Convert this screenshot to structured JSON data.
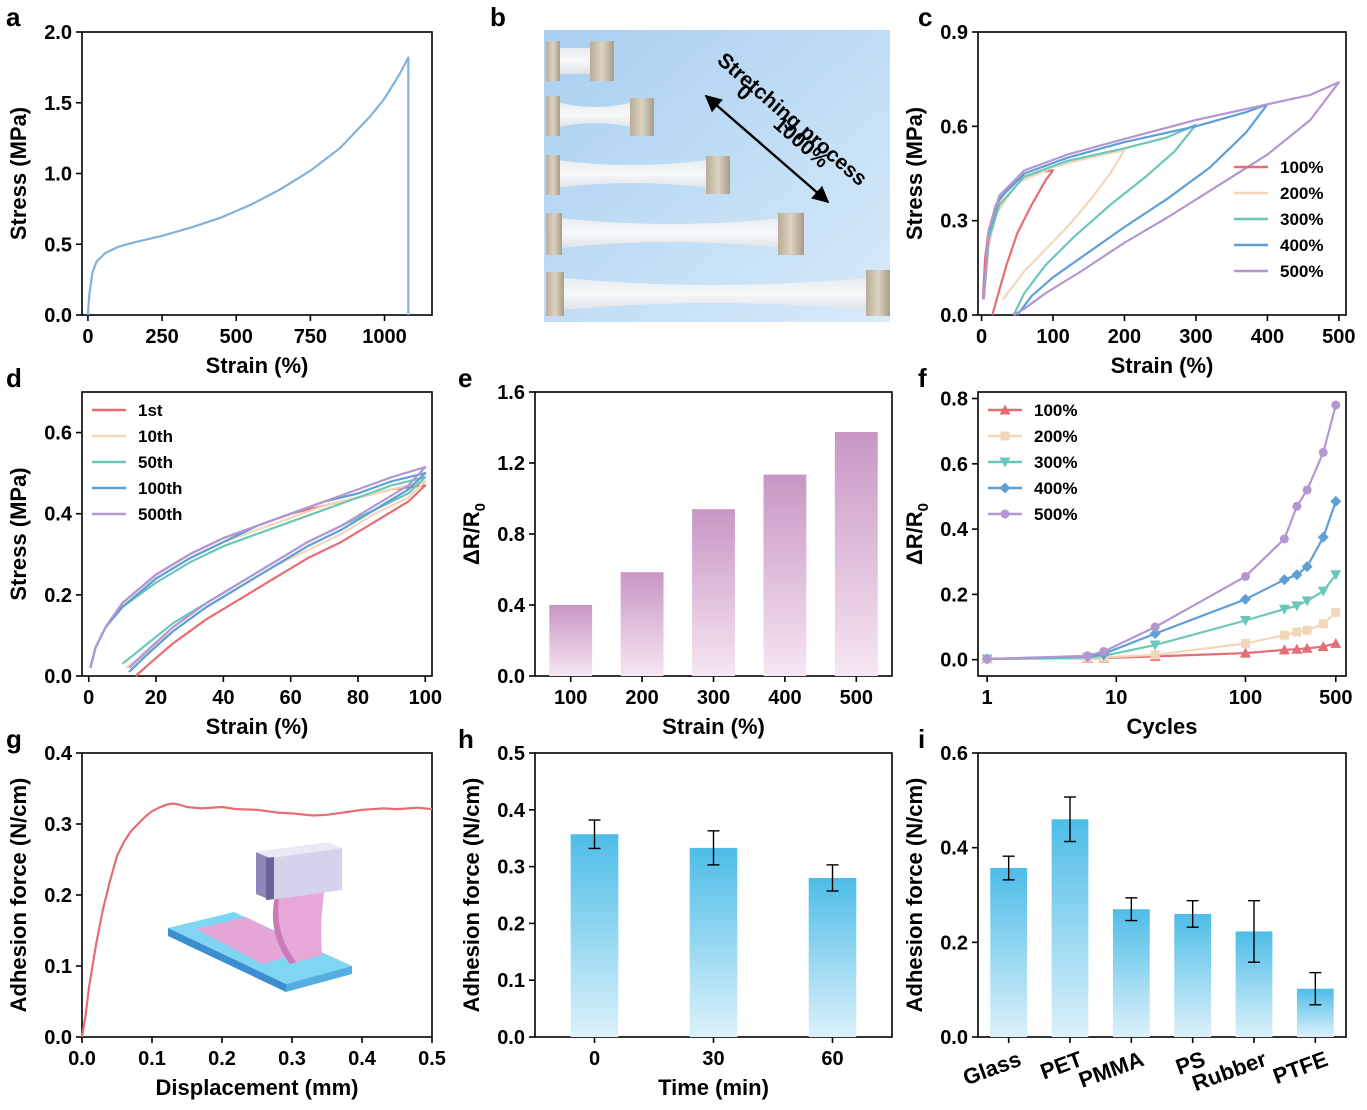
{
  "panels": [
    {
      "id": "a",
      "type": "line",
      "xlabel": "Strain (%)",
      "ylabel": "Stress (MPa)",
      "xlim": [
        -20,
        1160
      ],
      "ylim": [
        0,
        2.0
      ],
      "xticks": [
        0,
        250,
        500,
        750,
        1000
      ],
      "yticks": [
        0.0,
        0.5,
        1.0,
        1.5,
        2.0
      ],
      "ytick_decimals": 1,
      "grid": false,
      "series": [
        {
          "color": "#7fb3dd",
          "x": [
            0,
            5,
            15,
            30,
            60,
            100,
            150,
            250,
            350,
            450,
            550,
            650,
            750,
            850,
            950,
            1000,
            1050,
            1080,
            1080
          ],
          "y": [
            0,
            0.15,
            0.3,
            0.38,
            0.44,
            0.48,
            0.51,
            0.56,
            0.62,
            0.69,
            0.78,
            0.89,
            1.02,
            1.18,
            1.4,
            1.53,
            1.7,
            1.82,
            0.0
          ]
        }
      ]
    },
    {
      "id": "b",
      "type": "photo",
      "annotation": "Stretching process",
      "range_start": "0",
      "range_end": "1000%"
    },
    {
      "id": "c",
      "type": "line",
      "xlabel": "Strain (%)",
      "ylabel": "Stress (MPa)",
      "xlim": [
        -5,
        510
      ],
      "ylim": [
        0,
        0.9
      ],
      "xticks": [
        0,
        100,
        200,
        300,
        400,
        500
      ],
      "yticks": [
        0.0,
        0.3,
        0.6,
        0.9
      ],
      "ytick_decimals": 1,
      "grid": false,
      "legend_position": "right",
      "series": [
        {
          "name": "100%",
          "color": "#e66d73",
          "x": [
            2,
            5,
            10,
            20,
            40,
            60,
            80,
            100,
            90,
            70,
            50,
            35,
            25,
            15
          ],
          "y": [
            0.05,
            0.18,
            0.27,
            0.35,
            0.41,
            0.44,
            0.455,
            0.46,
            0.43,
            0.35,
            0.26,
            0.16,
            0.08,
            0.0
          ]
        },
        {
          "name": "200%",
          "color": "#f2d7b8",
          "x": [
            3,
            10,
            20,
            50,
            100,
            150,
            200,
            180,
            150,
            120,
            90,
            60,
            40,
            30
          ],
          "y": [
            0.05,
            0.22,
            0.32,
            0.42,
            0.47,
            0.5,
            0.525,
            0.45,
            0.36,
            0.28,
            0.21,
            0.14,
            0.08,
            0.05
          ]
        },
        {
          "name": "300%",
          "color": "#6cc7b9",
          "x": [
            3,
            10,
            25,
            60,
            120,
            200,
            260,
            300,
            270,
            230,
            180,
            130,
            90,
            60,
            45
          ],
          "y": [
            0.05,
            0.24,
            0.35,
            0.44,
            0.49,
            0.53,
            0.565,
            0.605,
            0.52,
            0.44,
            0.35,
            0.25,
            0.16,
            0.07,
            0.0
          ]
        },
        {
          "name": "400%",
          "color": "#5f9ed6",
          "x": [
            3,
            10,
            25,
            60,
            120,
            200,
            300,
            370,
            400,
            370,
            320,
            260,
            200,
            150,
            100,
            70,
            50
          ],
          "y": [
            0.05,
            0.26,
            0.37,
            0.45,
            0.5,
            0.55,
            0.6,
            0.645,
            0.67,
            0.58,
            0.47,
            0.37,
            0.28,
            0.2,
            0.12,
            0.06,
            0.0
          ]
        },
        {
          "name": "500%",
          "color": "#b397d1",
          "x": [
            3,
            10,
            25,
            60,
            120,
            200,
            300,
            400,
            460,
            500,
            460,
            400,
            330,
            260,
            200,
            140,
            90,
            60,
            45
          ],
          "y": [
            0.05,
            0.27,
            0.38,
            0.46,
            0.51,
            0.56,
            0.62,
            0.67,
            0.7,
            0.74,
            0.62,
            0.51,
            0.41,
            0.31,
            0.23,
            0.14,
            0.07,
            0.02,
            0.0
          ]
        }
      ]
    },
    {
      "id": "d",
      "type": "line",
      "xlabel": "Strain (%)",
      "ylabel": "Stress (MPa)",
      "xlim": [
        -2,
        102
      ],
      "ylim": [
        0,
        0.7
      ],
      "xticks": [
        0,
        20,
        40,
        60,
        80,
        100
      ],
      "yticks": [
        0.0,
        0.2,
        0.4,
        0.6
      ],
      "ytick_decimals": 1,
      "grid": false,
      "legend_position": "top-left",
      "series": [
        {
          "name": "1st",
          "color": "#e66d73",
          "x": [
            0.5,
            2,
            5,
            10,
            20,
            30,
            40,
            50,
            60,
            70,
            80,
            90,
            100,
            95,
            85,
            75,
            65,
            55,
            45,
            35,
            25,
            18,
            14
          ],
          "y": [
            0.02,
            0.07,
            0.12,
            0.18,
            0.25,
            0.3,
            0.34,
            0.37,
            0.4,
            0.42,
            0.44,
            0.46,
            0.47,
            0.43,
            0.38,
            0.33,
            0.29,
            0.24,
            0.19,
            0.14,
            0.08,
            0.03,
            0.0
          ]
        },
        {
          "name": "10th",
          "color": "#f2d7b8",
          "x": [
            0.5,
            2,
            5,
            10,
            20,
            30,
            40,
            50,
            60,
            70,
            80,
            90,
            100,
            95,
            85,
            75,
            65,
            55,
            45,
            35,
            25,
            16,
            11
          ],
          "y": [
            0.02,
            0.07,
            0.12,
            0.17,
            0.24,
            0.29,
            0.33,
            0.36,
            0.39,
            0.42,
            0.44,
            0.46,
            0.48,
            0.44,
            0.4,
            0.35,
            0.31,
            0.27,
            0.22,
            0.17,
            0.11,
            0.05,
            0.02
          ]
        },
        {
          "name": "50th",
          "color": "#6cc7b9",
          "x": [
            0.5,
            2,
            5,
            10,
            20,
            30,
            40,
            50,
            60,
            70,
            80,
            90,
            100,
            95,
            85,
            75,
            65,
            55,
            45,
            35,
            25,
            16,
            10
          ],
          "y": [
            0.02,
            0.07,
            0.12,
            0.17,
            0.23,
            0.28,
            0.32,
            0.35,
            0.38,
            0.41,
            0.44,
            0.47,
            0.49,
            0.45,
            0.41,
            0.37,
            0.33,
            0.28,
            0.23,
            0.18,
            0.13,
            0.07,
            0.03
          ]
        },
        {
          "name": "100th",
          "color": "#5f9ed6",
          "x": [
            0.5,
            2,
            5,
            10,
            20,
            30,
            40,
            50,
            60,
            70,
            80,
            90,
            100,
            95,
            85,
            75,
            65,
            55,
            45,
            35,
            25,
            17,
            12
          ],
          "y": [
            0.02,
            0.07,
            0.12,
            0.17,
            0.24,
            0.29,
            0.33,
            0.37,
            0.4,
            0.43,
            0.45,
            0.48,
            0.5,
            0.46,
            0.41,
            0.36,
            0.32,
            0.27,
            0.22,
            0.17,
            0.11,
            0.05,
            0.01
          ]
        },
        {
          "name": "500th",
          "color": "#b397d1",
          "x": [
            0.5,
            2,
            5,
            10,
            20,
            30,
            40,
            50,
            60,
            70,
            80,
            90,
            100,
            95,
            85,
            75,
            65,
            55,
            45,
            35,
            25,
            17,
            12
          ],
          "y": [
            0.02,
            0.07,
            0.12,
            0.18,
            0.25,
            0.3,
            0.34,
            0.37,
            0.4,
            0.43,
            0.46,
            0.49,
            0.515,
            0.47,
            0.42,
            0.37,
            0.33,
            0.28,
            0.23,
            0.18,
            0.12,
            0.06,
            0.02
          ]
        }
      ]
    },
    {
      "id": "e",
      "type": "bar",
      "xlabel": "Strain (%)",
      "ylabel": "ΔR/R",
      "ylabel_sub": "0",
      "ylim": [
        0,
        1.6
      ],
      "yticks": [
        0.0,
        0.4,
        0.8,
        1.2,
        1.6
      ],
      "ytick_decimals": 1,
      "categories": [
        "100",
        "200",
        "300",
        "400",
        "500"
      ],
      "values": [
        0.4,
        0.585,
        0.94,
        1.135,
        1.375
      ],
      "bar_color": "#c996c4",
      "grid": false
    },
    {
      "id": "f",
      "type": "line",
      "log_x": true,
      "xlabel": "Cycles",
      "ylabel": "ΔR/R",
      "ylabel_sub": "0",
      "xlim": [
        0.85,
        600
      ],
      "ylim": [
        -0.05,
        0.82
      ],
      "xticks": [
        1,
        10,
        100,
        500
      ],
      "yticks": [
        0.0,
        0.2,
        0.4,
        0.6,
        0.8
      ],
      "ytick_decimals": 1,
      "grid": false,
      "legend_position": "top-left",
      "series": [
        {
          "name": "100%",
          "color": "#e66d73",
          "marker": "triangle-up",
          "x": [
            1,
            6,
            8,
            20,
            100,
            200,
            250,
            300,
            400,
            500
          ],
          "y": [
            0.002,
            0.004,
            0.005,
            0.01,
            0.02,
            0.03,
            0.032,
            0.035,
            0.04,
            0.05
          ]
        },
        {
          "name": "200%",
          "color": "#f2d7b8",
          "marker": "square",
          "x": [
            1,
            6,
            8,
            20,
            100,
            200,
            250,
            300,
            400,
            500
          ],
          "y": [
            0.002,
            0.005,
            0.007,
            0.015,
            0.05,
            0.075,
            0.085,
            0.09,
            0.11,
            0.145
          ]
        },
        {
          "name": "300%",
          "color": "#6cc7b9",
          "marker": "triangle-down",
          "x": [
            1,
            6,
            8,
            20,
            100,
            200,
            250,
            300,
            400,
            500
          ],
          "y": [
            0.002,
            0.007,
            0.012,
            0.045,
            0.12,
            0.155,
            0.165,
            0.18,
            0.21,
            0.26
          ]
        },
        {
          "name": "400%",
          "color": "#5f9ed6",
          "marker": "diamond",
          "x": [
            1,
            6,
            8,
            20,
            100,
            200,
            250,
            300,
            400,
            500
          ],
          "y": [
            0.002,
            0.01,
            0.018,
            0.08,
            0.185,
            0.245,
            0.26,
            0.285,
            0.375,
            0.485
          ]
        },
        {
          "name": "500%",
          "color": "#b397d1",
          "marker": "circle",
          "x": [
            1,
            6,
            8,
            20,
            100,
            200,
            250,
            300,
            400,
            500
          ],
          "y": [
            0.002,
            0.012,
            0.025,
            0.1,
            0.255,
            0.37,
            0.47,
            0.52,
            0.635,
            0.78
          ]
        }
      ]
    },
    {
      "id": "g",
      "type": "line",
      "xlabel": "Displacement (mm)",
      "ylabel": "Adhesion force (N/cm)",
      "xlim": [
        0,
        0.5
      ],
      "ylim": [
        0,
        0.4
      ],
      "xticks": [
        0.0,
        0.1,
        0.2,
        0.3,
        0.4,
        0.5
      ],
      "yticks": [
        0.0,
        0.1,
        0.2,
        0.3,
        0.4
      ],
      "xtick_decimals": 1,
      "ytick_decimals": 1,
      "grid": false,
      "series": [
        {
          "color": "#e66d73",
          "x": [
            0.0,
            0.005,
            0.01,
            0.02,
            0.03,
            0.04,
            0.05,
            0.06,
            0.07,
            0.08,
            0.09,
            0.1,
            0.11,
            0.12,
            0.13,
            0.14,
            0.15,
            0.17,
            0.2,
            0.22,
            0.25,
            0.28,
            0.3,
            0.33,
            0.35,
            0.38,
            0.4,
            0.43,
            0.45,
            0.48,
            0.5
          ],
          "y": [
            0.0,
            0.03,
            0.07,
            0.13,
            0.18,
            0.22,
            0.255,
            0.275,
            0.29,
            0.3,
            0.31,
            0.318,
            0.323,
            0.327,
            0.329,
            0.327,
            0.324,
            0.322,
            0.324,
            0.321,
            0.32,
            0.316,
            0.315,
            0.312,
            0.313,
            0.317,
            0.32,
            0.322,
            0.321,
            0.323,
            0.321
          ]
        }
      ]
    },
    {
      "id": "h",
      "type": "bar",
      "xlabel": "Time (min)",
      "ylabel": "Adhesion force (N/cm)",
      "ylim": [
        0,
        0.5
      ],
      "yticks": [
        0.0,
        0.1,
        0.2,
        0.3,
        0.4,
        0.5
      ],
      "ytick_decimals": 1,
      "categories": [
        "0",
        "30",
        "60"
      ],
      "values": [
        0.357,
        0.333,
        0.28
      ],
      "errors": [
        0.025,
        0.03,
        0.023
      ],
      "bar_color": "#4dbde8",
      "grid": false
    },
    {
      "id": "i",
      "type": "bar",
      "ylabel": "Adhesion force (N/cm)",
      "ylim": [
        0,
        0.6
      ],
      "yticks": [
        0.0,
        0.2,
        0.4,
        0.6
      ],
      "ytick_decimals": 1,
      "categories": [
        "Glass",
        "PET",
        "PMMA",
        "PS",
        "Rubber",
        "PTFE"
      ],
      "values": [
        0.357,
        0.46,
        0.27,
        0.26,
        0.223,
        0.102
      ],
      "errors": [
        0.025,
        0.047,
        0.024,
        0.028,
        0.065,
        0.034
      ],
      "bar_color": "#4dbde8",
      "grid": false,
      "xtick_rotation": -20
    }
  ]
}
